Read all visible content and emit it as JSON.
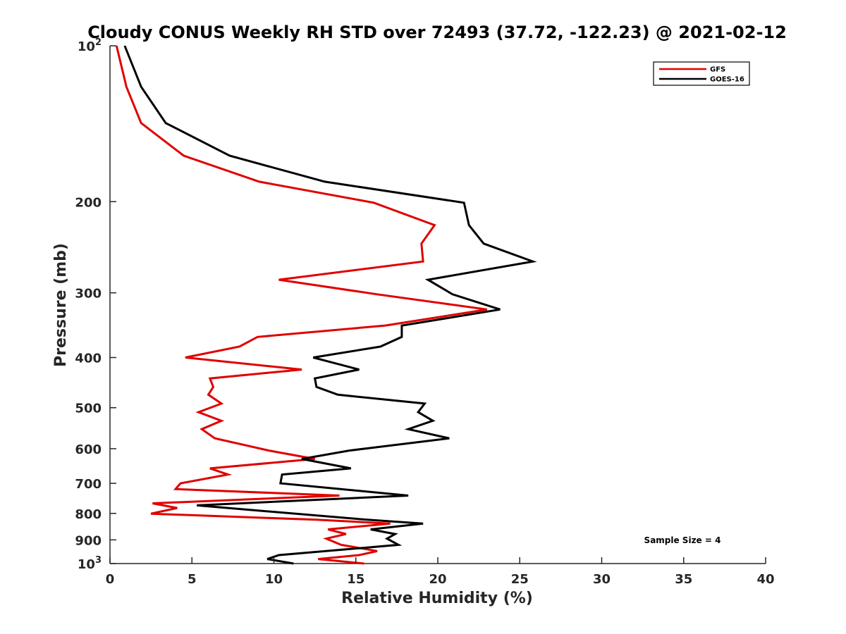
{
  "chart_data": {
    "type": "line",
    "title": "Cloudy CONUS Weekly RH STD over 72493 (37.72, -122.23) @ 2021-02-12",
    "xlabel": "Relative Humidity (%)",
    "ylabel": "Pressure (mb)",
    "xlim": [
      0,
      40
    ],
    "ylim": [
      100,
      1000
    ],
    "y_scale": "log",
    "y_reversed": true,
    "x_ticks": [
      0,
      5,
      10,
      15,
      20,
      25,
      30,
      35,
      40
    ],
    "y_ticks": [
      {
        "value": 100,
        "base": "10",
        "exp": "2"
      },
      {
        "value": 200,
        "label": "200"
      },
      {
        "value": 300,
        "label": "300"
      },
      {
        "value": 400,
        "label": "400"
      },
      {
        "value": 500,
        "label": "500"
      },
      {
        "value": 600,
        "label": "600"
      },
      {
        "value": 700,
        "label": "700"
      },
      {
        "value": 800,
        "label": "800"
      },
      {
        "value": 900,
        "label": "900"
      },
      {
        "value": 1000,
        "base": "10",
        "exp": "3"
      }
    ],
    "grid": false,
    "legend_position": "top-right",
    "annotation": "Sample Size = 4",
    "series": [
      {
        "name": "GFS",
        "color": "#e00000",
        "points": [
          [
            0.4,
            100
          ],
          [
            1.0,
            120
          ],
          [
            1.9,
            141
          ],
          [
            4.5,
            163
          ],
          [
            9.1,
            183
          ],
          [
            16.1,
            201
          ],
          [
            19.8,
            222
          ],
          [
            19.0,
            241
          ],
          [
            19.1,
            261
          ],
          [
            10.3,
            283
          ],
          [
            16.3,
            302
          ],
          [
            23.0,
            323
          ],
          [
            16.8,
            347
          ],
          [
            9.0,
            365
          ],
          [
            7.9,
            381
          ],
          [
            4.6,
            400
          ],
          [
            11.7,
            422
          ],
          [
            6.1,
            439
          ],
          [
            6.3,
            456
          ],
          [
            6.0,
            472
          ],
          [
            6.8,
            491
          ],
          [
            5.4,
            510
          ],
          [
            6.8,
            530
          ],
          [
            5.6,
            550
          ],
          [
            6.4,
            573
          ],
          [
            9.7,
            605
          ],
          [
            12.5,
            628
          ],
          [
            6.1,
            655
          ],
          [
            7.2,
            673
          ],
          [
            4.3,
            700
          ],
          [
            4.0,
            718
          ],
          [
            14.0,
            739
          ],
          [
            2.6,
            765
          ],
          [
            4.1,
            781
          ],
          [
            2.5,
            801
          ],
          [
            12.6,
            823
          ],
          [
            17.1,
            837
          ],
          [
            13.3,
            859
          ],
          [
            14.4,
            877
          ],
          [
            13.2,
            895
          ],
          [
            14.1,
            920
          ],
          [
            16.3,
            946
          ],
          [
            15.2,
            963
          ],
          [
            12.7,
            980
          ],
          [
            15.5,
            1000
          ]
        ]
      },
      {
        "name": "GOES-16",
        "color": "#000000",
        "points": [
          [
            0.9,
            100
          ],
          [
            1.9,
            120
          ],
          [
            3.4,
            141
          ],
          [
            7.3,
            163
          ],
          [
            13.1,
            183
          ],
          [
            21.6,
            201
          ],
          [
            21.9,
            222
          ],
          [
            22.8,
            241
          ],
          [
            25.8,
            261
          ],
          [
            19.4,
            283
          ],
          [
            20.9,
            302
          ],
          [
            23.8,
            323
          ],
          [
            17.8,
            347
          ],
          [
            17.8,
            365
          ],
          [
            16.5,
            381
          ],
          [
            12.4,
            400
          ],
          [
            15.2,
            422
          ],
          [
            12.5,
            439
          ],
          [
            12.6,
            456
          ],
          [
            13.9,
            472
          ],
          [
            19.2,
            491
          ],
          [
            18.8,
            510
          ],
          [
            19.7,
            530
          ],
          [
            18.2,
            550
          ],
          [
            20.7,
            573
          ],
          [
            14.6,
            605
          ],
          [
            11.7,
            628
          ],
          [
            14.7,
            655
          ],
          [
            10.5,
            673
          ],
          [
            10.4,
            700
          ],
          [
            18.2,
            739
          ],
          [
            5.3,
            772
          ],
          [
            15.7,
            823
          ],
          [
            19.1,
            837
          ],
          [
            15.9,
            859
          ],
          [
            17.4,
            877
          ],
          [
            16.9,
            895
          ],
          [
            17.6,
            920
          ],
          [
            10.3,
            963
          ],
          [
            9.6,
            980
          ],
          [
            11.2,
            1000
          ]
        ]
      }
    ]
  }
}
